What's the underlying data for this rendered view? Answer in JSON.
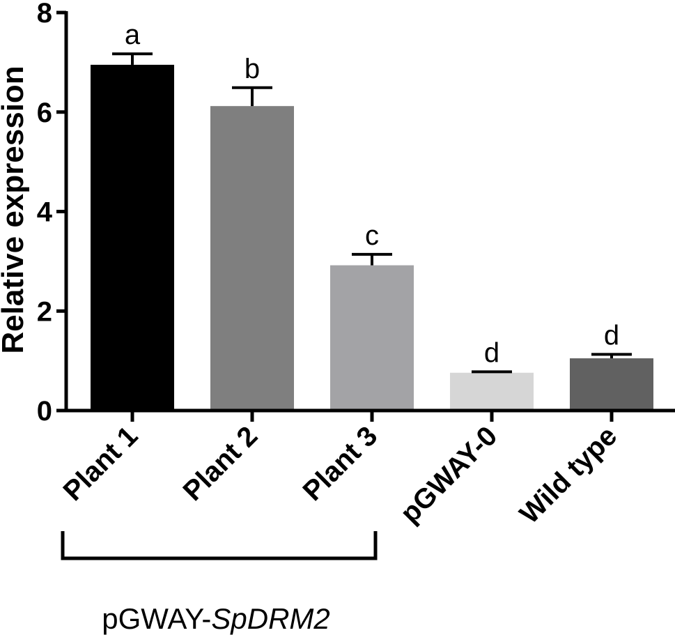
{
  "chart_data": {
    "type": "bar",
    "title": "",
    "xlabel": "",
    "ylabel": "Relative expression",
    "ylim": [
      0,
      8
    ],
    "yticks": [
      "0",
      "2",
      "4",
      "6",
      "8"
    ],
    "grid": false,
    "categories": [
      "Plant 1",
      "Plant 2",
      "Plant 3",
      "pGWAY-0",
      "Wild type"
    ],
    "values": [
      6.95,
      6.12,
      2.92,
      0.76,
      1.05
    ],
    "errors": [
      0.22,
      0.37,
      0.22,
      0.02,
      0.08
    ],
    "significance": [
      "a",
      "b",
      "c",
      "d",
      "d"
    ],
    "colors": [
      "#000000",
      "#7f7f7f",
      "#a3a3a6",
      "#d6d6d6",
      "#616161"
    ],
    "group_label": {
      "prefix": "pGWAY-",
      "gene": "SpDRM2",
      "first_category": 0,
      "last_category": 2
    }
  }
}
